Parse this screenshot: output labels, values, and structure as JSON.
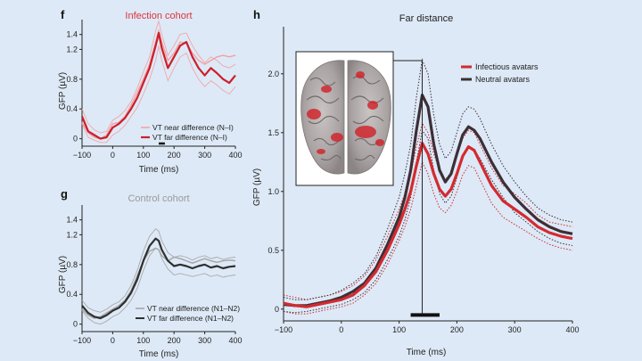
{
  "panels": {
    "f": {
      "letter": "f",
      "title": "Infection cohort",
      "title_color": "#e0323c",
      "xlabel": "Time (ms)",
      "ylabel": "GFP (µV)",
      "xticks": [
        "−100",
        "0",
        "100",
        "200",
        "300",
        "400"
      ],
      "yticks": [
        "0",
        "0.4",
        "0.8",
        "1.2",
        "1.4"
      ],
      "legend": [
        "VT near difference (N–I)",
        "VT far difference (N–I)"
      ]
    },
    "g": {
      "letter": "g",
      "title": "Control cohort",
      "title_color": "#9a9a9a",
      "xlabel": "Time (ms)",
      "ylabel": "GFP (µV)",
      "xticks": [
        "−100",
        "0",
        "100",
        "200",
        "300",
        "400"
      ],
      "yticks": [
        "0",
        "0.4",
        "0.8",
        "1.2",
        "1.4"
      ],
      "legend": [
        "VT near difference (N1–N2)",
        "VT far difference (N1–N2)"
      ]
    },
    "h": {
      "letter": "h",
      "title": "Far distance",
      "xlabel": "Time (ms)",
      "ylabel": "GFP (µV)",
      "xticks": [
        "−100",
        "0",
        "100",
        "200",
        "300",
        "400"
      ],
      "yticks": [
        "0",
        "0.5",
        "1.0",
        "1.5",
        "2.0"
      ],
      "legend": [
        "Infectious avatars",
        "Neutral avatars"
      ]
    }
  },
  "chart_data": [
    {
      "panel": "f",
      "type": "line",
      "title": "Infection cohort",
      "xlabel": "Time (ms)",
      "ylabel": "GFP (µV)",
      "xlim": [
        -100,
        400
      ],
      "ylim": [
        -0.1,
        1.6
      ],
      "colors": {
        "near": "#f2a0a4",
        "far": "#cc1f2b"
      },
      "x": [
        -100,
        -80,
        -60,
        -40,
        -20,
        0,
        20,
        40,
        60,
        80,
        100,
        120,
        140,
        150,
        160,
        180,
        200,
        220,
        240,
        260,
        280,
        300,
        320,
        340,
        360,
        380,
        400
      ],
      "series": [
        {
          "name": "VT near difference (N–I)",
          "values": [
            0.22,
            0.08,
            0.02,
            0.0,
            0.05,
            0.2,
            0.22,
            0.3,
            0.45,
            0.62,
            0.8,
            1.0,
            1.3,
            1.45,
            1.3,
            1.05,
            1.15,
            1.3,
            1.28,
            1.15,
            1.05,
            1.0,
            1.05,
            1.1,
            1.12,
            1.1,
            1.12
          ]
        },
        {
          "name": "VT far difference (N–I)",
          "values": [
            0.3,
            0.1,
            0.05,
            0.0,
            0.02,
            0.15,
            0.2,
            0.28,
            0.4,
            0.55,
            0.75,
            0.95,
            1.25,
            1.42,
            1.22,
            0.95,
            1.1,
            1.25,
            1.3,
            1.1,
            0.95,
            0.85,
            0.95,
            0.88,
            0.8,
            0.75,
            0.85
          ]
        }
      ],
      "bands": [
        {
          "series": "VT far difference (N–I)",
          "upper": [
            0.4,
            0.2,
            0.12,
            0.08,
            0.1,
            0.25,
            0.3,
            0.38,
            0.5,
            0.68,
            0.9,
            1.1,
            1.45,
            1.58,
            1.4,
            1.12,
            1.25,
            1.4,
            1.42,
            1.25,
            1.12,
            1.02,
            1.1,
            1.05,
            0.98,
            0.95,
            1.0
          ],
          "lower": [
            0.2,
            0.02,
            -0.02,
            -0.05,
            -0.05,
            0.05,
            0.1,
            0.18,
            0.3,
            0.42,
            0.6,
            0.8,
            1.05,
            1.25,
            1.05,
            0.78,
            0.95,
            1.1,
            1.15,
            0.95,
            0.8,
            0.7,
            0.78,
            0.72,
            0.65,
            0.6,
            0.7
          ]
        }
      ],
      "significance_bar_x": [
        150,
        170
      ]
    },
    {
      "panel": "g",
      "type": "line",
      "title": "Control cohort",
      "xlabel": "Time (ms)",
      "ylabel": "GFP (µV)",
      "xlim": [
        -100,
        400
      ],
      "ylim": [
        -0.1,
        1.6
      ],
      "colors": {
        "near": "#a3a3a3",
        "far": "#2f2f2f"
      },
      "x": [
        -100,
        -80,
        -60,
        -40,
        -20,
        0,
        20,
        40,
        60,
        80,
        100,
        120,
        140,
        150,
        160,
        180,
        200,
        220,
        240,
        260,
        280,
        300,
        320,
        340,
        360,
        380,
        400
      ],
      "series": [
        {
          "name": "VT near difference (N1–N2)",
          "values": [
            0.2,
            0.12,
            0.08,
            0.1,
            0.15,
            0.2,
            0.25,
            0.32,
            0.45,
            0.65,
            0.85,
            0.98,
            1.02,
            1.0,
            0.92,
            0.85,
            0.9,
            0.88,
            0.85,
            0.82,
            0.85,
            0.88,
            0.85,
            0.83,
            0.85,
            0.86,
            0.85
          ]
        },
        {
          "name": "VT far difference (N1–N2)",
          "values": [
            0.25,
            0.15,
            0.1,
            0.08,
            0.12,
            0.18,
            0.22,
            0.3,
            0.42,
            0.6,
            0.85,
            1.05,
            1.15,
            1.12,
            1.0,
            0.85,
            0.78,
            0.8,
            0.78,
            0.75,
            0.78,
            0.8,
            0.76,
            0.78,
            0.75,
            0.77,
            0.78
          ]
        }
      ],
      "bands": [
        {
          "series": "VT far difference (N1–N2)",
          "upper": [
            0.32,
            0.22,
            0.18,
            0.16,
            0.2,
            0.26,
            0.3,
            0.38,
            0.52,
            0.72,
            0.98,
            1.18,
            1.28,
            1.25,
            1.12,
            0.96,
            0.9,
            0.92,
            0.9,
            0.86,
            0.9,
            0.92,
            0.88,
            0.9,
            0.87,
            0.89,
            0.9
          ],
          "lower": [
            0.18,
            0.08,
            0.02,
            0.0,
            0.04,
            0.1,
            0.14,
            0.22,
            0.32,
            0.48,
            0.72,
            0.92,
            1.02,
            1.0,
            0.88,
            0.74,
            0.66,
            0.68,
            0.66,
            0.64,
            0.66,
            0.68,
            0.64,
            0.66,
            0.63,
            0.65,
            0.66
          ]
        }
      ]
    },
    {
      "panel": "h",
      "type": "line",
      "title": "Far distance",
      "xlabel": "Time (ms)",
      "ylabel": "GFP (µV)",
      "xlim": [
        -100,
        400
      ],
      "ylim": [
        -0.1,
        2.4
      ],
      "colors": {
        "Infectious avatars": "#d42a30",
        "Neutral avatars": "#3c2f36"
      },
      "legend_position": "top-right",
      "x": [
        -100,
        -80,
        -60,
        -40,
        -20,
        0,
        20,
        40,
        60,
        80,
        100,
        110,
        120,
        130,
        140,
        150,
        160,
        170,
        180,
        190,
        200,
        210,
        220,
        230,
        240,
        260,
        280,
        300,
        320,
        340,
        360,
        380,
        400
      ],
      "series": [
        {
          "name": "Infectious avatars",
          "values": [
            0.05,
            0.03,
            0.02,
            0.04,
            0.06,
            0.08,
            0.12,
            0.2,
            0.32,
            0.5,
            0.72,
            0.85,
            1.0,
            1.22,
            1.41,
            1.32,
            1.15,
            1.02,
            0.96,
            1.02,
            1.15,
            1.3,
            1.38,
            1.35,
            1.25,
            1.05,
            0.92,
            0.85,
            0.78,
            0.7,
            0.65,
            0.62,
            0.6
          ]
        },
        {
          "name": "Neutral avatars",
          "values": [
            0.04,
            0.03,
            0.03,
            0.05,
            0.07,
            0.1,
            0.15,
            0.22,
            0.35,
            0.55,
            0.78,
            0.95,
            1.18,
            1.52,
            1.82,
            1.72,
            1.4,
            1.18,
            1.08,
            1.15,
            1.32,
            1.48,
            1.55,
            1.52,
            1.45,
            1.25,
            1.08,
            0.95,
            0.85,
            0.76,
            0.7,
            0.66,
            0.64
          ]
        }
      ],
      "bands": [
        {
          "series": "Infectious avatars",
          "upper": [
            0.12,
            0.1,
            0.08,
            0.1,
            0.12,
            0.15,
            0.2,
            0.28,
            0.42,
            0.62,
            0.85,
            0.98,
            1.15,
            1.38,
            1.58,
            1.5,
            1.32,
            1.18,
            1.1,
            1.16,
            1.3,
            1.45,
            1.52,
            1.5,
            1.4,
            1.2,
            1.05,
            0.98,
            0.9,
            0.8,
            0.74,
            0.72,
            0.7
          ],
          "lower": [
            -0.02,
            -0.04,
            -0.04,
            -0.02,
            0.0,
            0.02,
            0.05,
            0.12,
            0.22,
            0.38,
            0.58,
            0.7,
            0.85,
            1.05,
            1.25,
            1.15,
            0.98,
            0.86,
            0.82,
            0.88,
            1.0,
            1.14,
            1.22,
            1.2,
            1.1,
            0.9,
            0.78,
            0.72,
            0.66,
            0.6,
            0.55,
            0.52,
            0.5
          ]
        },
        {
          "series": "Neutral avatars",
          "upper": [
            0.1,
            0.08,
            0.08,
            0.1,
            0.12,
            0.16,
            0.22,
            0.3,
            0.45,
            0.68,
            0.95,
            1.15,
            1.4,
            1.8,
            2.12,
            2.0,
            1.65,
            1.4,
            1.28,
            1.34,
            1.5,
            1.66,
            1.72,
            1.7,
            1.62,
            1.4,
            1.22,
            1.08,
            0.96,
            0.86,
            0.8,
            0.76,
            0.74
          ],
          "lower": [
            -0.02,
            -0.03,
            -0.02,
            0.0,
            0.02,
            0.04,
            0.08,
            0.14,
            0.25,
            0.42,
            0.62,
            0.76,
            0.95,
            1.25,
            1.52,
            1.45,
            1.18,
            0.98,
            0.9,
            0.96,
            1.12,
            1.3,
            1.38,
            1.35,
            1.28,
            1.1,
            0.95,
            0.82,
            0.74,
            0.66,
            0.6,
            0.56,
            0.54
          ]
        }
      ],
      "significance_bar_x": [
        120,
        170
      ]
    }
  ]
}
